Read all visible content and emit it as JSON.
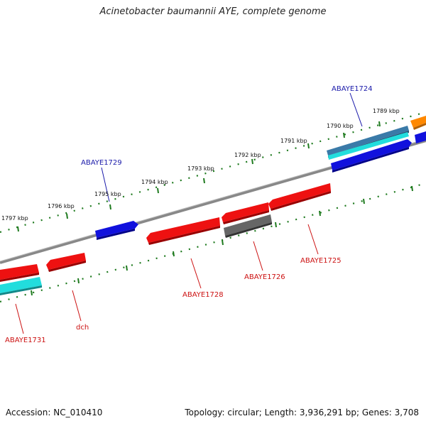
{
  "title": "Acinetobacter baumannii AYE, complete genome",
  "footer": {
    "accession": "Accession: NC_010410",
    "summary": "Topology: circular; Length: 3,936,291 bp; Genes: 3,708"
  },
  "colors": {
    "backbone": "#888888",
    "ticks": "#1e7a1e",
    "label_forward": "#1a1aaa",
    "label_reverse": "#cc1111",
    "gene_red": "#ee1111",
    "gene_blue": "#1111dd",
    "gene_gray": "#666666",
    "gene_cyan": "#22dddd",
    "gene_steel": "#3a7aa8",
    "gene_orange": "#ff8800"
  },
  "tick_labels": [
    {
      "name": "tick-1789",
      "text": "1789 kbp"
    },
    {
      "name": "tick-1790",
      "text": "1790 kbp"
    },
    {
      "name": "tick-1791",
      "text": "1791 kbp"
    },
    {
      "name": "tick-1792",
      "text": "1792 kbp"
    },
    {
      "name": "tick-1793",
      "text": "1793 kbp"
    },
    {
      "name": "tick-1794",
      "text": "1794 kbp"
    },
    {
      "name": "tick-1795",
      "text": "1795 kbp"
    },
    {
      "name": "tick-1796",
      "text": "1796 kbp"
    },
    {
      "name": "tick-1797",
      "text": "1797 kbp"
    }
  ],
  "gene_labels": [
    {
      "name": "label-abaye1724",
      "text": "ABAYE1724",
      "strand": "forward"
    },
    {
      "name": "label-abaye1729",
      "text": "ABAYE1729",
      "strand": "forward"
    },
    {
      "name": "label-abaye1725",
      "text": "ABAYE1725",
      "strand": "reverse"
    },
    {
      "name": "label-abaye1726",
      "text": "ABAYE1726",
      "strand": "reverse"
    },
    {
      "name": "label-abaye1728",
      "text": "ABAYE1728",
      "strand": "reverse"
    },
    {
      "name": "label-dch",
      "text": "dch",
      "strand": "reverse"
    },
    {
      "name": "label-abaye1731",
      "text": "ABAYE1731",
      "strand": "reverse"
    }
  ]
}
